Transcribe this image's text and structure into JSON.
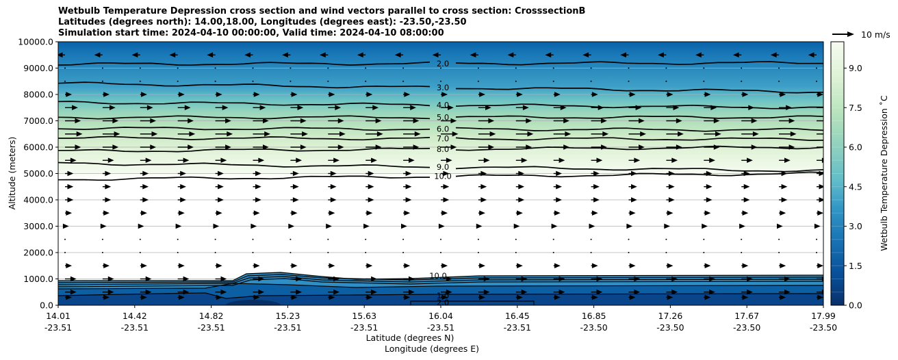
{
  "chart_data": {
    "type": "contourf",
    "title": [
      "Wetbulb Temperature Depression cross section and wind vectors parallel to cross section: CrosssectionB",
      "Latitudes (degrees north): 14.00,18.00, Longitudes (degrees east): -23.50,-23.50",
      "Simulation start time: 2024-04-10 00:00:00, Valid time: 2024-04-10 08:00:00"
    ],
    "ylabel": "Altitude (meters)",
    "xlabel": "Latitude (degrees N)",
    "xlabel2": "Longitude (degrees E)",
    "ylim": [
      0,
      10000
    ],
    "yticks": [
      "0.0",
      "1000.0",
      "2000.0",
      "3000.0",
      "4000.0",
      "5000.0",
      "6000.0",
      "7000.0",
      "8000.0",
      "9000.0",
      "10000.0"
    ],
    "xticks": [
      {
        "lat": "14.01",
        "lon": "-23.51"
      },
      {
        "lat": "14.42",
        "lon": "-23.51"
      },
      {
        "lat": "14.82",
        "lon": "-23.51"
      },
      {
        "lat": "15.23",
        "lon": "-23.51"
      },
      {
        "lat": "15.63",
        "lon": "-23.51"
      },
      {
        "lat": "16.04",
        "lon": "-23.51"
      },
      {
        "lat": "16.45",
        "lon": "-23.51"
      },
      {
        "lat": "16.85",
        "lon": "-23.50"
      },
      {
        "lat": "17.26",
        "lon": "-23.50"
      },
      {
        "lat": "17.67",
        "lon": "-23.50"
      },
      {
        "lat": "17.99",
        "lon": "-23.50"
      }
    ],
    "grid": "horizontal",
    "colorbar": {
      "label": "Wetbulb Temperature Depression ˚C",
      "ticks": [
        "0.0",
        "1.5",
        "3.0",
        "4.5",
        "6.0",
        "7.5",
        "9.0"
      ],
      "range": [
        0,
        10
      ],
      "colormap": "GnBu reversed",
      "color_low": "#08306b",
      "color_high": "#f7fcf0"
    },
    "contours": [
      {
        "level": 2.0,
        "label": "2.0",
        "altitude_left": 9150,
        "altitude_right": 9200
      },
      {
        "level": 3.0,
        "label": "3.0",
        "altitude_left": 8420,
        "altitude_right": 8100
      },
      {
        "level": 4.0,
        "label": "4.0",
        "altitude_left": 7700,
        "altitude_right": 7500
      },
      {
        "level": 5.0,
        "label": "5.0",
        "altitude_left": 7130,
        "altitude_right": 7140
      },
      {
        "level": 6.0,
        "label": "6.0",
        "altitude_left": 6720,
        "altitude_right": 6650
      },
      {
        "level": 7.0,
        "label": "7.0",
        "altitude_left": 6350,
        "altitude_right": 6300
      },
      {
        "level": 8.0,
        "label": "8.0",
        "altitude_left": 5850,
        "altitude_right": 6000
      },
      {
        "level": 9.0,
        "label": "9.0",
        "altitude_left": 5390,
        "altitude_right": 5100
      },
      {
        "level": 10.0,
        "label": "10.0",
        "altitude_left": 4780,
        "altitude_right": 5000
      }
    ],
    "near_surface_labels": [
      "10.0",
      "1.0",
      "2.0"
    ],
    "wind_key": {
      "label": "10 m/s",
      "speed": 10
    },
    "wind_vectors": {
      "direction_above_9000m": "left",
      "direction_below_9000m": "right",
      "levels_m": [
        300,
        500,
        1000,
        1500,
        2000,
        2500,
        3000,
        3500,
        4000,
        4500,
        5000,
        5500,
        6000,
        6500,
        7000,
        7500,
        8000,
        8500,
        9000,
        9500
      ],
      "speeds_ms": [
        4,
        7,
        7,
        4,
        1,
        1,
        2,
        4,
        5,
        5,
        5,
        7,
        10,
        11,
        10,
        8,
        4,
        1,
        1,
        5
      ]
    }
  }
}
